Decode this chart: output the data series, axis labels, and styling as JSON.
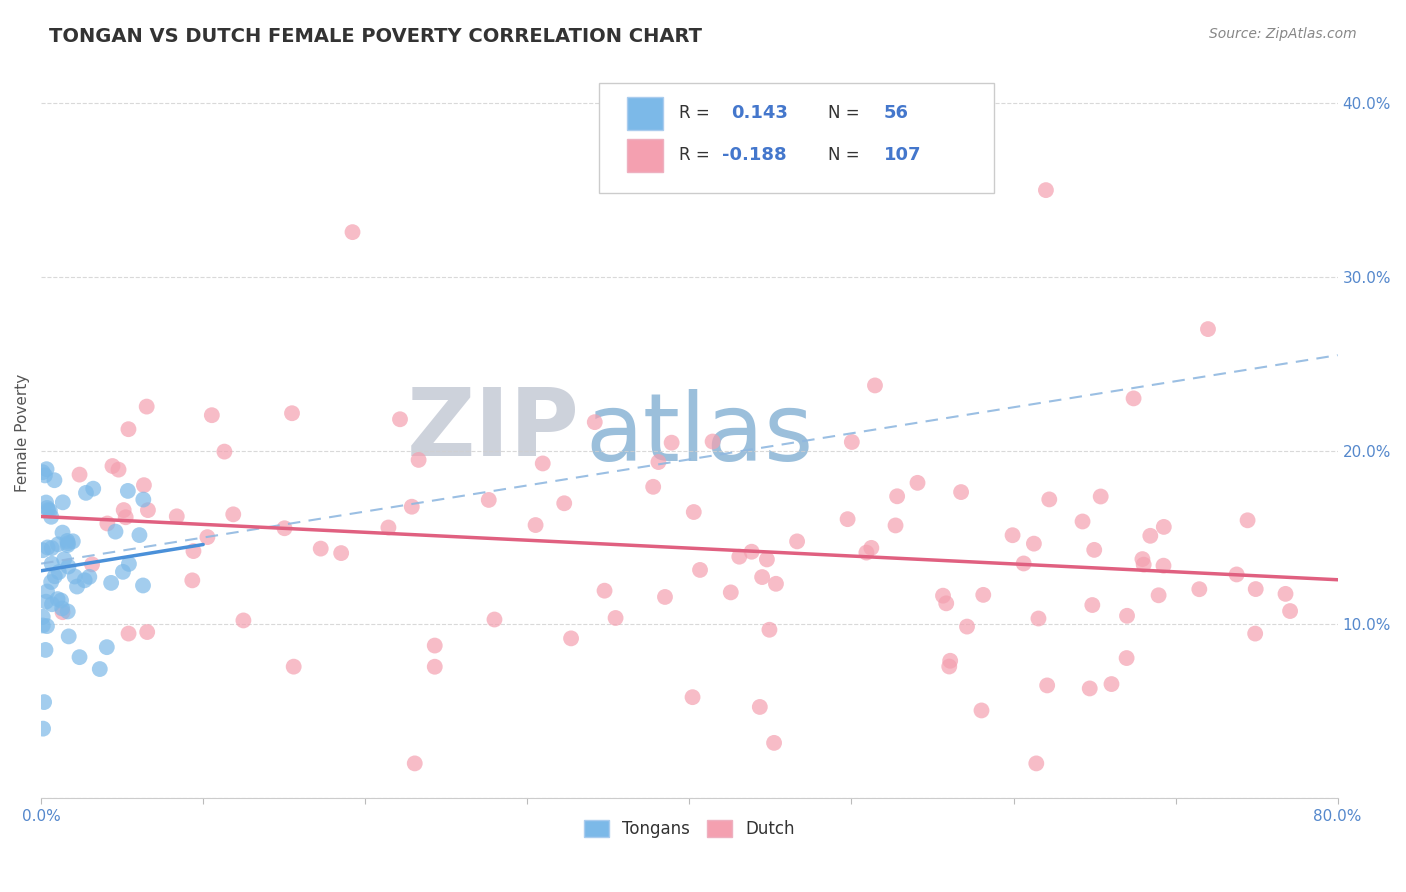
{
  "title": "TONGAN VS DUTCH FEMALE POVERTY CORRELATION CHART",
  "source_text": "Source: ZipAtlas.com",
  "ylabel": "Female Poverty",
  "xlim": [
    0.0,
    0.8
  ],
  "ylim": [
    0.0,
    0.42
  ],
  "xticks": [
    0.0,
    0.1,
    0.2,
    0.3,
    0.4,
    0.5,
    0.6,
    0.7,
    0.8
  ],
  "ytick_positions": [
    0.0,
    0.1,
    0.2,
    0.3,
    0.4
  ],
  "tongan_R": 0.143,
  "tongan_N": 56,
  "dutch_R": -0.188,
  "dutch_N": 107,
  "tongan_color": "#7cb9e8",
  "dutch_color": "#f4a0b0",
  "trend_tongan_color": "#4a90d9",
  "trend_dutch_color": "#e06080",
  "dash_line_color": "#90b8e0",
  "watermark_zip_color": "#c8cdd8",
  "watermark_atlas_color": "#90b8d8",
  "background_color": "#ffffff",
  "grid_color": "#d0d0d0",
  "tick_label_color": "#5588cc",
  "axis_label_color": "#555555",
  "title_fontsize": 14,
  "source_fontsize": 10,
  "tick_fontsize": 11
}
